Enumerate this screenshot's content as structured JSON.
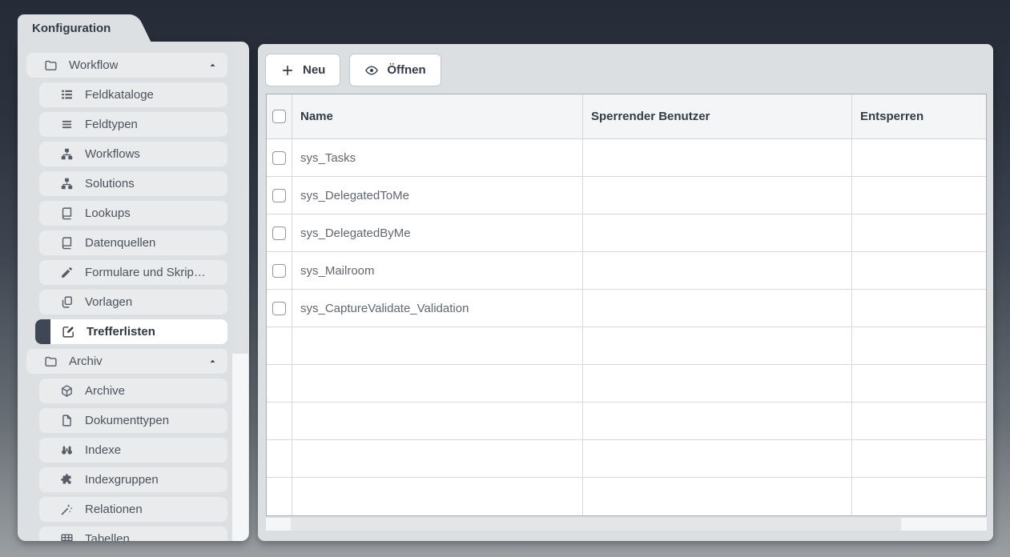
{
  "window": {
    "tab_label": "Konfiguration"
  },
  "sidebar": {
    "items": [
      {
        "label": "Workflow",
        "type": "group",
        "icon": "folder-icon",
        "expanded": true
      },
      {
        "label": "Feldkataloge",
        "type": "item",
        "icon": "list-icon"
      },
      {
        "label": "Feldtypen",
        "type": "item",
        "icon": "lines-icon"
      },
      {
        "label": "Workflows",
        "type": "item",
        "icon": "sitemap-icon"
      },
      {
        "label": "Solutions",
        "type": "item",
        "icon": "sitemap-icon"
      },
      {
        "label": "Lookups",
        "type": "item",
        "icon": "book-icon"
      },
      {
        "label": "Datenquellen",
        "type": "item",
        "icon": "book-icon"
      },
      {
        "label": "Formulare und Skrip…",
        "type": "item",
        "icon": "pencil-icon"
      },
      {
        "label": "Vorlagen",
        "type": "item",
        "icon": "copy-icon"
      },
      {
        "label": "Trefferlisten",
        "type": "item",
        "icon": "edit-icon",
        "selected": true
      },
      {
        "label": "Archiv",
        "type": "group",
        "icon": "folder-icon",
        "expanded": true
      },
      {
        "label": "Archive",
        "type": "item",
        "icon": "package-icon"
      },
      {
        "label": "Dokumenttypen",
        "type": "item",
        "icon": "file-icon"
      },
      {
        "label": "Indexe",
        "type": "item",
        "icon": "binoculars-icon"
      },
      {
        "label": "Indexgruppen",
        "type": "item",
        "icon": "puzzle-icon"
      },
      {
        "label": "Relationen",
        "type": "item",
        "icon": "wand-icon"
      },
      {
        "label": "Tabellen",
        "type": "item",
        "icon": "table-icon"
      }
    ]
  },
  "toolbar": {
    "buttons": [
      {
        "label": "Neu",
        "icon": "plus-icon"
      },
      {
        "label": "Öffnen",
        "icon": "eye-icon"
      }
    ]
  },
  "table": {
    "columns": [
      {
        "label": "Name"
      },
      {
        "label": "Sperrender Benutzer"
      },
      {
        "label": "Entsperren"
      }
    ],
    "rows": [
      {
        "name": "sys_Tasks",
        "sperrender_benutzer": "",
        "entsperren": ""
      },
      {
        "name": "sys_DelegatedToMe",
        "sperrender_benutzer": "",
        "entsperren": ""
      },
      {
        "name": "sys_DelegatedByMe",
        "sperrender_benutzer": "",
        "entsperren": ""
      },
      {
        "name": "sys_Mailroom",
        "sperrender_benutzer": "",
        "entsperren": ""
      },
      {
        "name": "sys_CaptureValidate_Validation",
        "sperrender_benutzer": "",
        "entsperren": ""
      }
    ],
    "empty_rows": 5
  },
  "colors": {
    "background_top": "#262c37",
    "background_bottom": "#9b9fa2",
    "panel_bg": "#dde0e2",
    "item_bg": "#e9ebed",
    "selected_marker": "#3f4654",
    "header_text": "#333b48",
    "row_text": "#61676f"
  }
}
